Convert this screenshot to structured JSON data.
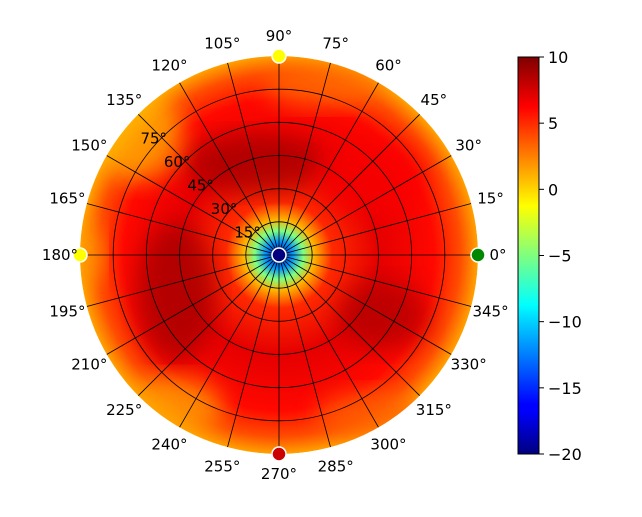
{
  "chart_data": {
    "type": "heatmap",
    "projection": "polar",
    "angular_ticks": [
      {
        "deg": 0,
        "label": "0°"
      },
      {
        "deg": 15,
        "label": "15°"
      },
      {
        "deg": 30,
        "label": "30°"
      },
      {
        "deg": 45,
        "label": "45°"
      },
      {
        "deg": 60,
        "label": "60°"
      },
      {
        "deg": 75,
        "label": "75°"
      },
      {
        "deg": 90,
        "label": "90°"
      },
      {
        "deg": 105,
        "label": "105°"
      },
      {
        "deg": 120,
        "label": "120°"
      },
      {
        "deg": 135,
        "label": "135°"
      },
      {
        "deg": 150,
        "label": "150°"
      },
      {
        "deg": 165,
        "label": "165°"
      },
      {
        "deg": 180,
        "label": "180°"
      },
      {
        "deg": 195,
        "label": "195°"
      },
      {
        "deg": 210,
        "label": "210°"
      },
      {
        "deg": 225,
        "label": "225°"
      },
      {
        "deg": 240,
        "label": "240°"
      },
      {
        "deg": 255,
        "label": "255°"
      },
      {
        "deg": 270,
        "label": "270°"
      },
      {
        "deg": 285,
        "label": "285°"
      },
      {
        "deg": 300,
        "label": "300°"
      },
      {
        "deg": 315,
        "label": "315°"
      },
      {
        "deg": 330,
        "label": "330°"
      },
      {
        "deg": 345,
        "label": "345°"
      }
    ],
    "radial_ticks": [
      {
        "value": 15,
        "label": "15°"
      },
      {
        "value": 30,
        "label": "30°"
      },
      {
        "value": 45,
        "label": "45°"
      },
      {
        "value": 60,
        "label": "60°"
      },
      {
        "value": 75,
        "label": "75°"
      }
    ],
    "rlim": [
      0,
      90
    ],
    "colorbar": {
      "colormap": "jet",
      "vmin": -20,
      "vmax": 10,
      "ticks": [
        {
          "value": 10,
          "label": "10"
        },
        {
          "value": 5,
          "label": "5"
        },
        {
          "value": 0,
          "label": "0"
        },
        {
          "value": -5,
          "label": "−5"
        },
        {
          "value": -10,
          "label": "−10"
        },
        {
          "value": -15,
          "label": "−15"
        },
        {
          "value": -20,
          "label": "−20"
        }
      ]
    },
    "field_levels": [
      {
        "r": 0,
        "value": -20
      },
      {
        "r": 6,
        "value": -12
      },
      {
        "r": 11,
        "value": -5
      },
      {
        "r": 16,
        "value": 1
      },
      {
        "r": 24,
        "value": 5
      },
      {
        "r": 45,
        "value": 7
      },
      {
        "r": 70,
        "value": 6
      },
      {
        "r": 82,
        "value": 4
      },
      {
        "r": 90,
        "value": 1.5
      }
    ],
    "markers": [
      {
        "theta": 0,
        "r": 90,
        "value": -7,
        "color": "#008800"
      },
      {
        "theta": 90,
        "r": 90,
        "value": 1,
        "color": "#ffff00"
      },
      {
        "theta": 180,
        "r": 90,
        "value": 1,
        "color": "#ffff00"
      },
      {
        "theta": 270,
        "r": 90,
        "value": 7,
        "color": "#cc0000"
      },
      {
        "theta": 0,
        "r": 0,
        "value": -20,
        "color": "#000080"
      }
    ],
    "grid": true
  }
}
